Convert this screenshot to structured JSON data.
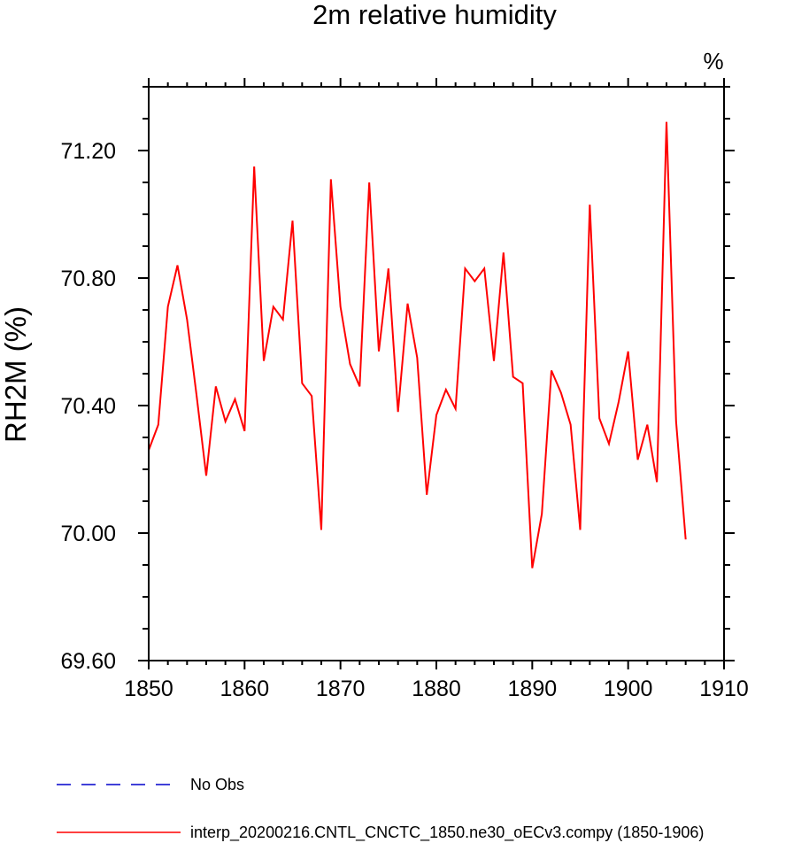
{
  "chart_data": {
    "type": "line",
    "title": "2m relative humidity",
    "units_label": "%",
    "xlabel": "",
    "ylabel": "RH2M  (%)",
    "xlim": [
      1850,
      1910
    ],
    "ylim": [
      69.6,
      71.4
    ],
    "x_ticks": [
      1850,
      1860,
      1870,
      1880,
      1890,
      1900,
      1910
    ],
    "x_tick_labels": [
      "1850",
      "1860",
      "1870",
      "1880",
      "1890",
      "1900",
      "1910"
    ],
    "y_ticks": [
      69.6,
      70.0,
      70.4,
      70.8,
      71.2
    ],
    "y_tick_labels": [
      "69.60",
      "70.00",
      "70.40",
      "70.80",
      "71.20"
    ],
    "y_minor_step": 0.1,
    "x_minor_step": 2,
    "grid": false,
    "legend_position": "bottom-left",
    "series": [
      {
        "name": "interp_20200216.CNTL_CNCTC_1850.ne30_oECv3.compy (1850-1906)",
        "color": "#ff0000",
        "style": "solid",
        "x": [
          1850,
          1851,
          1852,
          1853,
          1854,
          1855,
          1856,
          1857,
          1858,
          1859,
          1860,
          1861,
          1862,
          1863,
          1864,
          1865,
          1866,
          1867,
          1868,
          1869,
          1870,
          1871,
          1872,
          1873,
          1874,
          1875,
          1876,
          1877,
          1878,
          1879,
          1880,
          1881,
          1882,
          1883,
          1884,
          1885,
          1886,
          1887,
          1888,
          1889,
          1890,
          1891,
          1892,
          1893,
          1894,
          1895,
          1896,
          1897,
          1898,
          1899,
          1900,
          1901,
          1902,
          1903,
          1904,
          1905,
          1906
        ],
        "values": [
          70.26,
          70.34,
          70.71,
          70.84,
          70.67,
          70.43,
          70.18,
          70.46,
          70.35,
          70.42,
          70.32,
          71.15,
          70.54,
          70.71,
          70.67,
          70.98,
          70.47,
          70.43,
          70.01,
          71.11,
          70.71,
          70.53,
          70.46,
          71.1,
          70.57,
          70.83,
          70.38,
          70.72,
          70.55,
          70.12,
          70.37,
          70.45,
          70.39,
          70.83,
          70.79,
          70.83,
          70.54,
          70.88,
          70.49,
          70.47,
          69.89,
          70.06,
          70.51,
          70.44,
          70.34,
          70.01,
          71.03,
          70.36,
          70.28,
          70.41,
          70.57,
          70.23,
          70.34,
          70.16,
          71.29,
          70.35,
          69.98
        ]
      },
      {
        "name": "No Obs",
        "color": "#0000cc",
        "style": "dashed",
        "x": [],
        "values": []
      }
    ]
  }
}
